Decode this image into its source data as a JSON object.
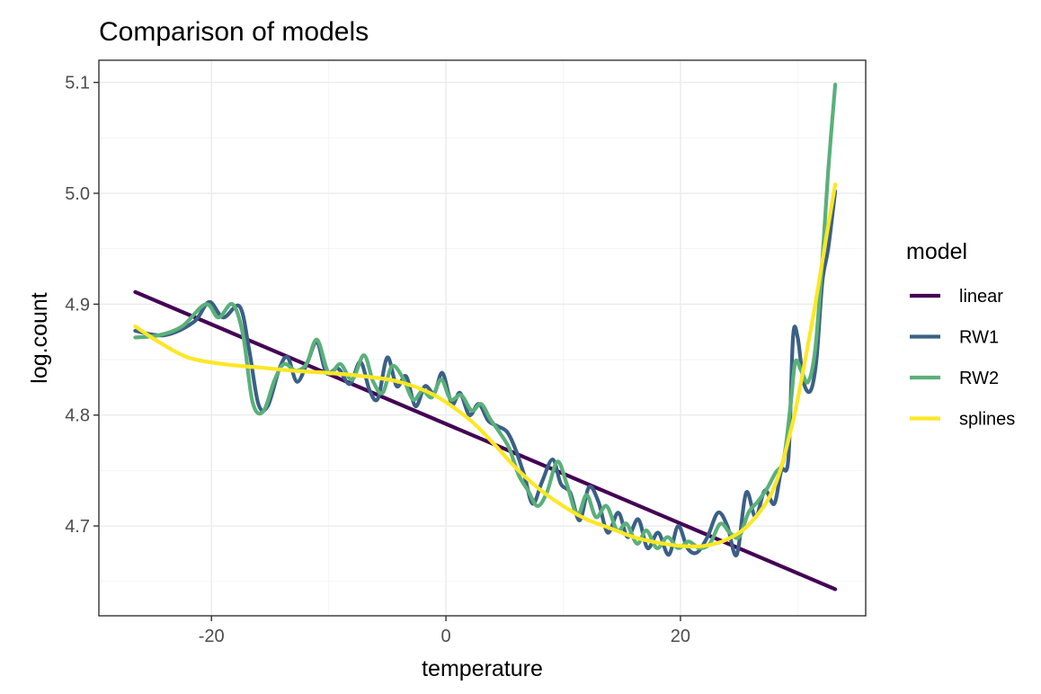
{
  "chart_data": {
    "type": "line",
    "title": "Comparison of models",
    "xlabel": "temperature",
    "ylabel": "log.count",
    "xlim": [
      -29.6,
      35.8
    ],
    "ylim": [
      4.619,
      5.12
    ],
    "x_ticks": [
      -20,
      0,
      20
    ],
    "y_ticks": [
      4.7,
      4.8,
      4.9,
      5.0,
      5.1
    ],
    "x_tick_labels": [
      "-20",
      "0",
      "20"
    ],
    "y_tick_labels": [
      "4.7",
      "4.8",
      "4.9",
      "5.0",
      "5.1"
    ],
    "grid": true,
    "legend": {
      "title": "model",
      "position": "right"
    },
    "series": [
      {
        "name": "linear",
        "color": "#440154",
        "points": [
          [
            -26.5,
            4.911
          ],
          [
            33.2,
            4.643
          ]
        ]
      },
      {
        "name": "RW1",
        "color": "#3b6086",
        "points": [
          [
            -26.5,
            4.876
          ],
          [
            -24,
            4.872
          ],
          [
            -21.5,
            4.884
          ],
          [
            -20.2,
            4.902
          ],
          [
            -19,
            4.888
          ],
          [
            -17.6,
            4.898
          ],
          [
            -16.8,
            4.86
          ],
          [
            -16,
            4.81
          ],
          [
            -15.2,
            4.808
          ],
          [
            -14.2,
            4.842
          ],
          [
            -13.5,
            4.852
          ],
          [
            -12.7,
            4.83
          ],
          [
            -11.8,
            4.848
          ],
          [
            -11,
            4.866
          ],
          [
            -10.2,
            4.838
          ],
          [
            -9.2,
            4.842
          ],
          [
            -8.2,
            4.828
          ],
          [
            -7.3,
            4.848
          ],
          [
            -6.5,
            4.822
          ],
          [
            -5.8,
            4.815
          ],
          [
            -5,
            4.852
          ],
          [
            -4.2,
            4.826
          ],
          [
            -3.4,
            4.835
          ],
          [
            -2.6,
            4.808
          ],
          [
            -1.8,
            4.826
          ],
          [
            -1,
            4.82
          ],
          [
            -0.3,
            4.838
          ],
          [
            0.5,
            4.81
          ],
          [
            1.2,
            4.82
          ],
          [
            2,
            4.8
          ],
          [
            2.8,
            4.81
          ],
          [
            3.6,
            4.795
          ],
          [
            4.4,
            4.79
          ],
          [
            5.2,
            4.785
          ],
          [
            5.9,
            4.77
          ],
          [
            6.7,
            4.745
          ],
          [
            7.4,
            4.72
          ],
          [
            8.2,
            4.74
          ],
          [
            9.1,
            4.76
          ],
          [
            9.8,
            4.738
          ],
          [
            10.6,
            4.73
          ],
          [
            11.4,
            4.705
          ],
          [
            12.2,
            4.735
          ],
          [
            13,
            4.722
          ],
          [
            13.8,
            4.694
          ],
          [
            14.7,
            4.712
          ],
          [
            15.5,
            4.69
          ],
          [
            16.4,
            4.706
          ],
          [
            17.2,
            4.68
          ],
          [
            18.1,
            4.694
          ],
          [
            19,
            4.674
          ],
          [
            19.8,
            4.7
          ],
          [
            20.6,
            4.68
          ],
          [
            21.4,
            4.676
          ],
          [
            22.3,
            4.69
          ],
          [
            23.2,
            4.712
          ],
          [
            24,
            4.7
          ],
          [
            24.8,
            4.674
          ],
          [
            25.6,
            4.73
          ],
          [
            26.4,
            4.708
          ],
          [
            27.2,
            4.732
          ],
          [
            28,
            4.72
          ],
          [
            28.6,
            4.75
          ],
          [
            29.2,
            4.76
          ],
          [
            29.6,
            4.87
          ],
          [
            30,
            4.87
          ],
          [
            30.5,
            4.83
          ],
          [
            31.1,
            4.822
          ],
          [
            31.6,
            4.85
          ],
          [
            32.1,
            4.92
          ],
          [
            32.6,
            4.95
          ],
          [
            33.2,
            5.002
          ]
        ]
      },
      {
        "name": "RW2",
        "color": "#5ab07a",
        "points": [
          [
            -26.5,
            4.87
          ],
          [
            -24.5,
            4.872
          ],
          [
            -22.5,
            4.88
          ],
          [
            -20.5,
            4.9
          ],
          [
            -19.4,
            4.888
          ],
          [
            -18.2,
            4.9
          ],
          [
            -17.3,
            4.872
          ],
          [
            -16.5,
            4.812
          ],
          [
            -15.6,
            4.803
          ],
          [
            -14.6,
            4.832
          ],
          [
            -13.8,
            4.846
          ],
          [
            -12.8,
            4.84
          ],
          [
            -11.9,
            4.846
          ],
          [
            -11,
            4.868
          ],
          [
            -10,
            4.838
          ],
          [
            -9,
            4.846
          ],
          [
            -8,
            4.832
          ],
          [
            -7,
            4.854
          ],
          [
            -6.2,
            4.83
          ],
          [
            -5.4,
            4.82
          ],
          [
            -4.6,
            4.844
          ],
          [
            -3.7,
            4.834
          ],
          [
            -2.8,
            4.814
          ],
          [
            -2,
            4.822
          ],
          [
            -1.2,
            4.816
          ],
          [
            -0.4,
            4.832
          ],
          [
            0.4,
            4.814
          ],
          [
            1.3,
            4.818
          ],
          [
            2.2,
            4.804
          ],
          [
            3,
            4.81
          ],
          [
            3.8,
            4.796
          ],
          [
            4.6,
            4.784
          ],
          [
            5.4,
            4.77
          ],
          [
            6.2,
            4.746
          ],
          [
            7,
            4.732
          ],
          [
            7.8,
            4.718
          ],
          [
            8.6,
            4.73
          ],
          [
            9.5,
            4.758
          ],
          [
            10.3,
            4.738
          ],
          [
            11.2,
            4.71
          ],
          [
            12,
            4.728
          ],
          [
            12.8,
            4.708
          ],
          [
            13.7,
            4.718
          ],
          [
            14.6,
            4.696
          ],
          [
            15.4,
            4.702
          ],
          [
            16.3,
            4.684
          ],
          [
            17.1,
            4.696
          ],
          [
            18,
            4.68
          ],
          [
            18.9,
            4.69
          ],
          [
            19.8,
            4.68
          ],
          [
            20.7,
            4.686
          ],
          [
            21.6,
            4.68
          ],
          [
            22.5,
            4.684
          ],
          [
            23.4,
            4.702
          ],
          [
            24.2,
            4.694
          ],
          [
            25,
            4.69
          ],
          [
            25.8,
            4.712
          ],
          [
            26.6,
            4.722
          ],
          [
            27.4,
            4.734
          ],
          [
            28.1,
            4.748
          ],
          [
            28.8,
            4.76
          ],
          [
            29.4,
            4.81
          ],
          [
            29.8,
            4.848
          ],
          [
            30.3,
            4.84
          ],
          [
            30.9,
            4.83
          ],
          [
            31.5,
            4.86
          ],
          [
            32.1,
            4.94
          ],
          [
            32.6,
            5.02
          ],
          [
            33.2,
            5.098
          ]
        ]
      },
      {
        "name": "splines",
        "color": "#fde725",
        "points": [
          [
            -26.5,
            4.88
          ],
          [
            -24.5,
            4.866
          ],
          [
            -22,
            4.852
          ],
          [
            -19,
            4.846
          ],
          [
            -16,
            4.843
          ],
          [
            -13,
            4.84
          ],
          [
            -10,
            4.838
          ],
          [
            -7,
            4.835
          ],
          [
            -4,
            4.83
          ],
          [
            -1,
            4.818
          ],
          [
            2,
            4.796
          ],
          [
            4,
            4.775
          ],
          [
            6,
            4.752
          ],
          [
            8,
            4.733
          ],
          [
            10,
            4.718
          ],
          [
            12,
            4.706
          ],
          [
            14,
            4.698
          ],
          [
            16,
            4.69
          ],
          [
            18,
            4.685
          ],
          [
            20,
            4.682
          ],
          [
            22,
            4.682
          ],
          [
            24,
            4.688
          ],
          [
            26,
            4.703
          ],
          [
            28,
            4.735
          ],
          [
            29.5,
            4.79
          ],
          [
            30.5,
            4.842
          ],
          [
            31.5,
            4.9
          ],
          [
            32.4,
            4.958
          ],
          [
            33.2,
            5.008
          ]
        ]
      }
    ]
  }
}
